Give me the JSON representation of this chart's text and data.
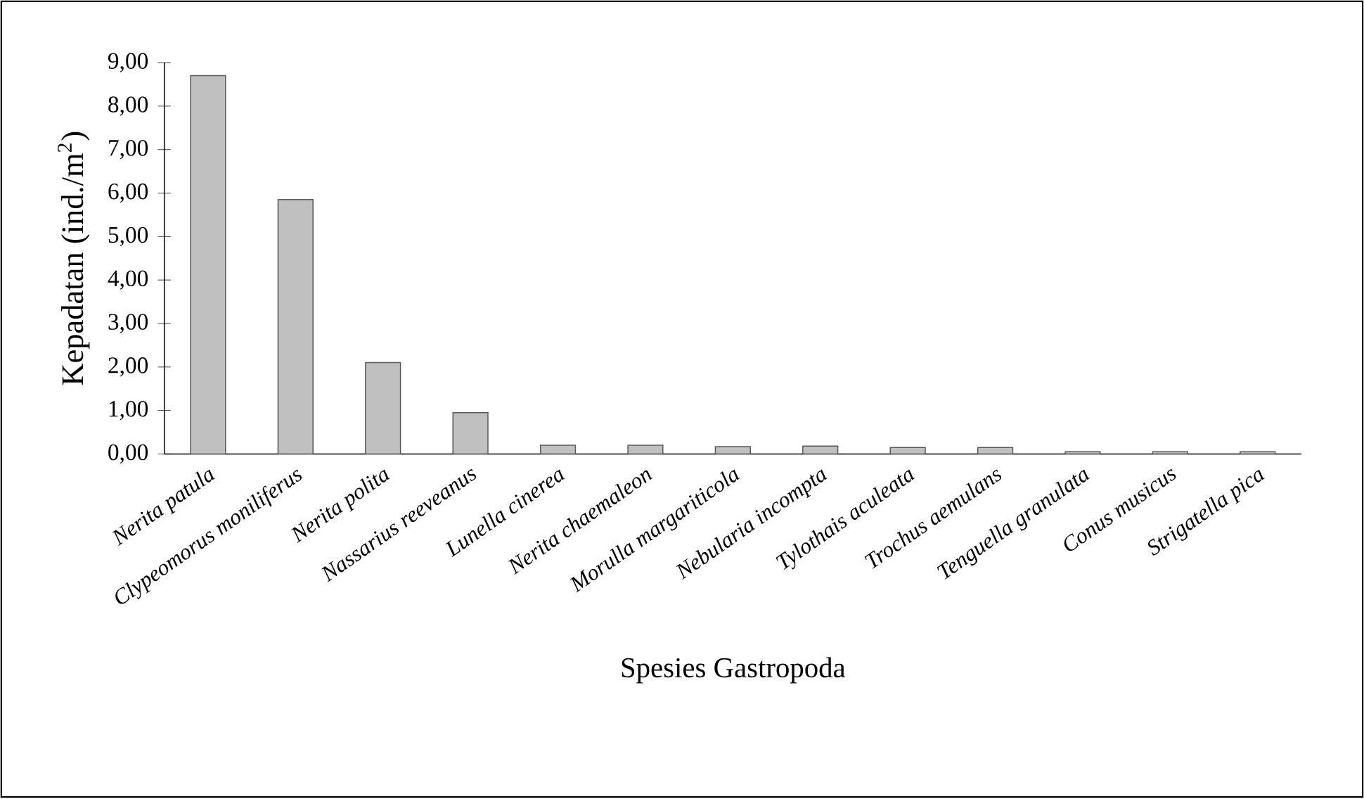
{
  "chart_data": {
    "type": "bar",
    "xlabel": "Spesies Gastropoda",
    "ylabel": "Kepadatan  (ind./m$^{2}$)",
    "categories": [
      "Nerita patula",
      "Clypeomorus moniliferus",
      "Nerita polita",
      "Nassarius reeveanus",
      "Lunella cinerea",
      "Nerita chaemaleon",
      "Morulla margariticola",
      "Nebularia incompta",
      "Tylothais aculeata",
      "Trochus aemulans",
      "Tenguella granulata",
      "Conus musicus",
      "Strigatella pica"
    ],
    "values": [
      8.7,
      5.85,
      2.1,
      0.95,
      0.2,
      0.2,
      0.17,
      0.18,
      0.15,
      0.15,
      0.05,
      0.05,
      0.05
    ],
    "color": "#c0c0c0",
    "ylim": [
      0,
      9
    ],
    "yticks": [
      {
        "value": 0,
        "label": "0,00"
      },
      {
        "value": 1,
        "label": "1,00"
      },
      {
        "value": 2,
        "label": "2,00"
      },
      {
        "value": 3,
        "label": "3,00"
      },
      {
        "value": 4,
        "label": "4,00"
      },
      {
        "value": 5,
        "label": "5,00"
      },
      {
        "value": 6,
        "label": "6,00"
      },
      {
        "value": 7,
        "label": "7,00"
      },
      {
        "value": 8,
        "label": "8,00"
      },
      {
        "value": 9,
        "label": "9,00"
      }
    ],
    "grid": false
  }
}
